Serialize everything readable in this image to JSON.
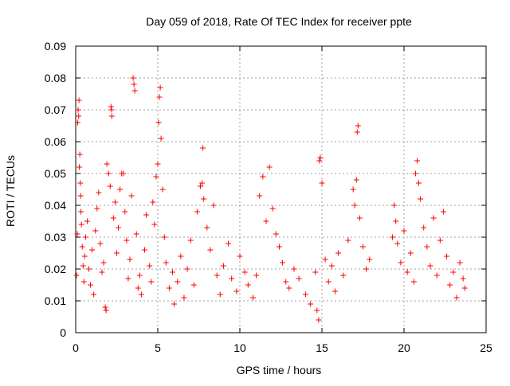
{
  "chart_data": {
    "type": "scatter",
    "title": "Day 059 of 2018, Rate Of TEC Index for receiver ppte",
    "xlabel": "GPS time / hours",
    "ylabel": "ROTI / TECUs",
    "xlim": [
      0,
      25
    ],
    "ylim": [
      0,
      0.09
    ],
    "xticks": [
      0,
      5,
      10,
      15,
      20,
      25
    ],
    "xtick_labels": [
      "0",
      "5",
      "10",
      "15",
      "20",
      "25"
    ],
    "yticks": [
      0,
      0.01,
      0.02,
      0.03,
      0.04,
      0.05,
      0.06,
      0.07,
      0.08,
      0.09
    ],
    "ytick_labels": [
      "0",
      "0.01",
      "0.02",
      "0.03",
      "0.04",
      "0.05",
      "0.06",
      "0.07",
      "0.08",
      "0.09"
    ],
    "grid": true,
    "marker": "+",
    "color": "#ff0000",
    "series": [
      {
        "name": "ROTI",
        "points": [
          [
            0.05,
            0.018
          ],
          [
            0.1,
            0.031
          ],
          [
            0.12,
            0.066
          ],
          [
            0.15,
            0.07
          ],
          [
            0.18,
            0.068
          ],
          [
            0.2,
            0.073
          ],
          [
            0.22,
            0.052
          ],
          [
            0.25,
            0.056
          ],
          [
            0.28,
            0.047
          ],
          [
            0.3,
            0.043
          ],
          [
            0.32,
            0.038
          ],
          [
            0.35,
            0.034
          ],
          [
            0.4,
            0.027
          ],
          [
            0.45,
            0.021
          ],
          [
            0.5,
            0.016
          ],
          [
            0.55,
            0.024
          ],
          [
            0.6,
            0.03
          ],
          [
            0.7,
            0.035
          ],
          [
            0.8,
            0.02
          ],
          [
            0.9,
            0.015
          ],
          [
            1.0,
            0.026
          ],
          [
            1.1,
            0.012
          ],
          [
            1.2,
            0.032
          ],
          [
            1.3,
            0.039
          ],
          [
            1.4,
            0.044
          ],
          [
            1.5,
            0.028
          ],
          [
            1.6,
            0.019
          ],
          [
            1.7,
            0.022
          ],
          [
            1.8,
            0.008
          ],
          [
            1.85,
            0.007
          ],
          [
            1.9,
            0.053
          ],
          [
            2.0,
            0.05
          ],
          [
            2.1,
            0.046
          ],
          [
            2.15,
            0.071
          ],
          [
            2.18,
            0.07
          ],
          [
            2.2,
            0.068
          ],
          [
            2.3,
            0.036
          ],
          [
            2.4,
            0.041
          ],
          [
            2.5,
            0.025
          ],
          [
            2.6,
            0.033
          ],
          [
            2.7,
            0.045
          ],
          [
            2.8,
            0.05
          ],
          [
            2.9,
            0.05
          ],
          [
            3.0,
            0.038
          ],
          [
            3.1,
            0.029
          ],
          [
            3.2,
            0.017
          ],
          [
            3.3,
            0.023
          ],
          [
            3.4,
            0.043
          ],
          [
            3.5,
            0.08
          ],
          [
            3.55,
            0.078
          ],
          [
            3.6,
            0.076
          ],
          [
            3.7,
            0.031
          ],
          [
            3.8,
            0.014
          ],
          [
            3.9,
            0.018
          ],
          [
            4.0,
            0.012
          ],
          [
            4.2,
            0.026
          ],
          [
            4.3,
            0.037
          ],
          [
            4.5,
            0.021
          ],
          [
            4.6,
            0.016
          ],
          [
            4.7,
            0.041
          ],
          [
            4.8,
            0.034
          ],
          [
            4.9,
            0.049
          ],
          [
            5.0,
            0.053
          ],
          [
            5.05,
            0.066
          ],
          [
            5.1,
            0.074
          ],
          [
            5.15,
            0.077
          ],
          [
            5.2,
            0.061
          ],
          [
            5.3,
            0.045
          ],
          [
            5.4,
            0.03
          ],
          [
            5.5,
            0.022
          ],
          [
            5.7,
            0.014
          ],
          [
            5.9,
            0.019
          ],
          [
            6.0,
            0.009
          ],
          [
            6.2,
            0.016
          ],
          [
            6.4,
            0.024
          ],
          [
            6.6,
            0.011
          ],
          [
            6.8,
            0.02
          ],
          [
            7.0,
            0.029
          ],
          [
            7.2,
            0.015
          ],
          [
            7.4,
            0.038
          ],
          [
            7.6,
            0.046
          ],
          [
            7.7,
            0.047
          ],
          [
            7.75,
            0.058
          ],
          [
            7.8,
            0.042
          ],
          [
            8.0,
            0.033
          ],
          [
            8.2,
            0.026
          ],
          [
            8.4,
            0.04
          ],
          [
            8.6,
            0.018
          ],
          [
            8.8,
            0.012
          ],
          [
            9.0,
            0.021
          ],
          [
            9.3,
            0.028
          ],
          [
            9.5,
            0.017
          ],
          [
            9.8,
            0.013
          ],
          [
            10.0,
            0.024
          ],
          [
            10.3,
            0.019
          ],
          [
            10.5,
            0.015
          ],
          [
            10.8,
            0.011
          ],
          [
            11.0,
            0.018
          ],
          [
            11.2,
            0.043
          ],
          [
            11.4,
            0.049
          ],
          [
            11.6,
            0.035
          ],
          [
            11.8,
            0.052
          ],
          [
            12.0,
            0.039
          ],
          [
            12.2,
            0.031
          ],
          [
            12.4,
            0.027
          ],
          [
            12.6,
            0.022
          ],
          [
            12.8,
            0.016
          ],
          [
            13.0,
            0.014
          ],
          [
            13.3,
            0.02
          ],
          [
            13.6,
            0.017
          ],
          [
            14.0,
            0.012
          ],
          [
            14.3,
            0.009
          ],
          [
            14.6,
            0.019
          ],
          [
            14.7,
            0.007
          ],
          [
            14.8,
            0.004
          ],
          [
            14.85,
            0.054
          ],
          [
            14.9,
            0.055
          ],
          [
            15.0,
            0.047
          ],
          [
            15.2,
            0.023
          ],
          [
            15.4,
            0.016
          ],
          [
            15.6,
            0.021
          ],
          [
            15.8,
            0.013
          ],
          [
            16.0,
            0.025
          ],
          [
            16.3,
            0.018
          ],
          [
            16.6,
            0.029
          ],
          [
            16.9,
            0.045
          ],
          [
            17.0,
            0.04
          ],
          [
            17.1,
            0.048
          ],
          [
            17.15,
            0.063
          ],
          [
            17.2,
            0.065
          ],
          [
            17.3,
            0.036
          ],
          [
            17.5,
            0.027
          ],
          [
            17.7,
            0.02
          ],
          [
            17.9,
            0.023
          ],
          [
            19.3,
            0.03
          ],
          [
            19.4,
            0.04
          ],
          [
            19.5,
            0.035
          ],
          [
            19.6,
            0.028
          ],
          [
            19.8,
            0.022
          ],
          [
            20.0,
            0.032
          ],
          [
            20.2,
            0.019
          ],
          [
            20.4,
            0.025
          ],
          [
            20.6,
            0.016
          ],
          [
            20.7,
            0.05
          ],
          [
            20.8,
            0.054
          ],
          [
            20.9,
            0.047
          ],
          [
            21.0,
            0.042
          ],
          [
            21.2,
            0.033
          ],
          [
            21.4,
            0.027
          ],
          [
            21.6,
            0.021
          ],
          [
            21.8,
            0.036
          ],
          [
            22.0,
            0.018
          ],
          [
            22.2,
            0.029
          ],
          [
            22.4,
            0.038
          ],
          [
            22.6,
            0.024
          ],
          [
            22.8,
            0.015
          ],
          [
            23.0,
            0.019
          ],
          [
            23.2,
            0.011
          ],
          [
            23.4,
            0.022
          ],
          [
            23.6,
            0.017
          ],
          [
            23.7,
            0.014
          ]
        ]
      }
    ]
  }
}
